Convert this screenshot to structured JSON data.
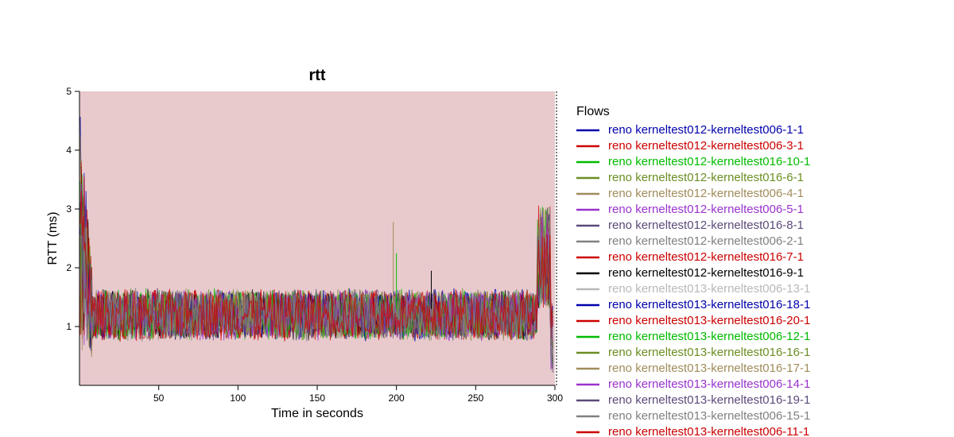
{
  "chart_data": {
    "type": "line",
    "title": "rtt",
    "xlabel": "Time in seconds",
    "ylabel": "RTT (ms)",
    "xlim": [
      0,
      300
    ],
    "ylim": [
      0,
      5
    ],
    "x_ticks": [
      50,
      100,
      150,
      200,
      250,
      300
    ],
    "y_ticks": [
      1,
      2,
      3,
      4,
      5
    ],
    "plot_background": "#e8cacd",
    "legend_title": "Flows",
    "legend_position": "right",
    "grid": false,
    "series": [
      {
        "name": "reno kerneltest012-kerneltest006-1-1",
        "color": "#0000aa"
      },
      {
        "name": "reno kerneltest012-kerneltest006-3-1",
        "color": "#cc0000"
      },
      {
        "name": "reno kerneltest012-kerneltest016-10-1",
        "color": "#00bb00"
      },
      {
        "name": "reno kerneltest012-kerneltest016-6-1",
        "color": "#6b8e23"
      },
      {
        "name": "reno kerneltest012-kerneltest006-4-1",
        "color": "#a08c5a"
      },
      {
        "name": "reno kerneltest012-kerneltest006-5-1",
        "color": "#9932cc"
      },
      {
        "name": "reno kerneltest012-kerneltest016-8-1",
        "color": "#5b4a7a"
      },
      {
        "name": "reno kerneltest012-kerneltest006-2-1",
        "color": "#808080"
      },
      {
        "name": "reno kerneltest012-kerneltest016-7-1",
        "color": "#cc0000"
      },
      {
        "name": "reno kerneltest012-kerneltest016-9-1",
        "color": "#000000"
      },
      {
        "name": "reno kerneltest013-kerneltest006-13-1",
        "color": "#b8b8b8"
      },
      {
        "name": "reno kerneltest013-kerneltest016-18-1",
        "color": "#0000aa"
      },
      {
        "name": "reno kerneltest013-kerneltest016-20-1",
        "color": "#cc0000"
      },
      {
        "name": "reno kerneltest013-kerneltest006-12-1",
        "color": "#00bb00"
      },
      {
        "name": "reno kerneltest013-kerneltest016-16-1",
        "color": "#6b8e23"
      },
      {
        "name": "reno kerneltest013-kerneltest016-17-1",
        "color": "#a08c5a"
      },
      {
        "name": "reno kerneltest013-kerneltest006-14-1",
        "color": "#9932cc"
      },
      {
        "name": "reno kerneltest013-kerneltest016-19-1",
        "color": "#5b4a7a"
      },
      {
        "name": "reno kerneltest013-kerneltest006-15-1",
        "color": "#808080"
      },
      {
        "name": "reno kerneltest013-kerneltest006-11-1",
        "color": "#cc0000"
      }
    ],
    "typical_range": [
      0.8,
      1.6
    ],
    "annotations": [
      {
        "x": 198,
        "y": 2.78
      },
      {
        "x": 200,
        "y": 2.25
      },
      {
        "x": 222,
        "y": 1.95
      }
    ]
  }
}
